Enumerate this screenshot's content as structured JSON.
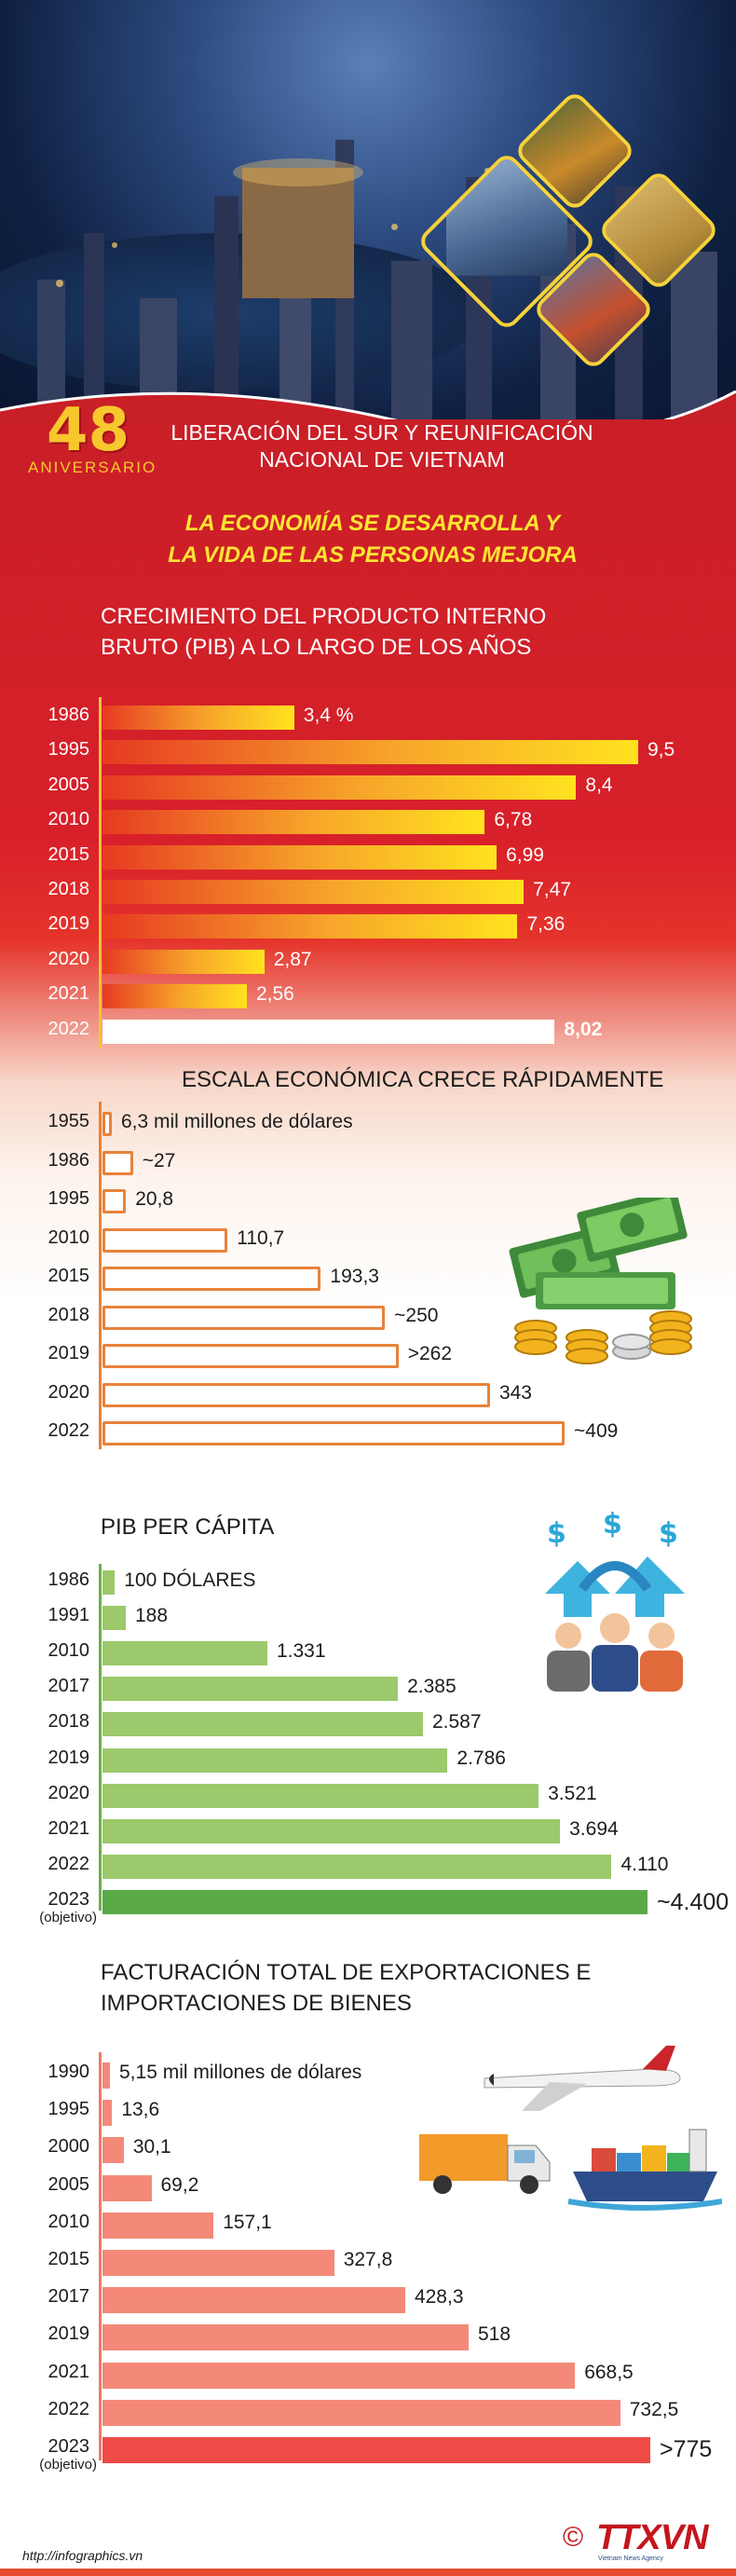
{
  "hero": {
    "anniversary_number": "48",
    "anniversary_label": "ANIVERSARIO",
    "headline_line1": "LIBERACIÓN DEL SUR Y REUNIFICACIÓN",
    "headline_line2": "NACIONAL DE VIETNAM",
    "subtitle_line1": "LA ECONOMÍA SE DESARROLLA Y",
    "subtitle_line2": "LA VIDA DE LAS PERSONAS  MEJORA"
  },
  "colors": {
    "red_background": "#d8202a",
    "gdp_growth_bar": "#ffd21f",
    "scale_bar_border": "#e8823a",
    "per_capita_bar": "#9cc96b",
    "per_capita_highlight": "#5aaa47",
    "trade_bar": "#f4897a",
    "trade_highlight": "#ee4b47",
    "accent_yellow": "#ffe533"
  },
  "chart_data": [
    {
      "type": "bar",
      "orientation": "horizontal",
      "title_line1": "CRECIMIENTO DEL PRODUCTO INTERNO",
      "title_line2": "BRUTO (PIB) A LO LARGO DE LOS AÑOS",
      "categories": [
        "1986",
        "1995",
        "2005",
        "2010",
        "2015",
        "2018",
        "2019",
        "2020",
        "2021",
        "2022"
      ],
      "values": [
        3.4,
        9.5,
        8.4,
        6.78,
        6.99,
        7.47,
        7.36,
        2.87,
        2.56,
        8.02
      ],
      "value_labels": [
        "3,4 %",
        "9,5",
        "8,4",
        "6,78",
        "6,99",
        "7,47",
        "7,36",
        "2,87",
        "2,56",
        "8,02"
      ],
      "highlight_index": 9
    },
    {
      "type": "bar",
      "orientation": "horizontal",
      "title": "ESCALA ECONÓMICA CRECE RÁPIDAMENTE",
      "categories": [
        "1955",
        "1986",
        "1995",
        "2010",
        "2015",
        "2018",
        "2019",
        "2020",
        "2022"
      ],
      "values": [
        6.3,
        27,
        20.8,
        110.7,
        193.3,
        250,
        262,
        343,
        409
      ],
      "value_labels": [
        "6,3 mil millones de dólares",
        "~27",
        "20,8",
        "110,7",
        "193,3",
        "~250",
        ">262",
        "343",
        "~409"
      ],
      "icon": "money-stack-icon"
    },
    {
      "type": "bar",
      "orientation": "horizontal",
      "title": "PIB PER CÁPITA",
      "categories": [
        "1986",
        "1991",
        "2010",
        "2017",
        "2018",
        "2019",
        "2020",
        "2021",
        "2022",
        "2023"
      ],
      "category_notes": [
        "",
        "",
        "",
        "",
        "",
        "",
        "",
        "",
        "",
        "(objetivo)"
      ],
      "values": [
        100,
        188,
        1331,
        2385,
        2587,
        2786,
        3521,
        3694,
        4110,
        4400
      ],
      "value_labels": [
        "100 DÓLARES",
        "188",
        "1.331",
        "2.385",
        "2.587",
        "2.786",
        "3.521",
        "3.694",
        "4.110",
        "~4.400"
      ],
      "highlight_index": 9,
      "icon": "people-income-icon"
    },
    {
      "type": "bar",
      "orientation": "horizontal",
      "title_line1": "FACTURACIÓN TOTAL DE EXPORTACIONES E",
      "title_line2": "IMPORTACIONES DE BIENES",
      "categories": [
        "1990",
        "1995",
        "2000",
        "2005",
        "2010",
        "2015",
        "2017",
        "2019",
        "2021",
        "2022",
        "2023"
      ],
      "category_notes": [
        "",
        "",
        "",
        "",
        "",
        "",
        "",
        "",
        "",
        "",
        "(objetivo)"
      ],
      "values": [
        5.15,
        13.6,
        30.1,
        69.2,
        157.1,
        327.8,
        428.3,
        518,
        668.5,
        732.5,
        775
      ],
      "value_labels": [
        "5,15 mil millones de dólares",
        "13,6",
        "30,1",
        "69,2",
        "157,1",
        "327,8",
        "428,3",
        "518",
        "668,5",
        "732,5",
        ">775"
      ],
      "highlight_index": 10,
      "icon": "transport-trade-icon"
    }
  ],
  "footer": {
    "url": "http://infographics.vn",
    "copyright_symbol": "©",
    "agency": "TTXVN",
    "agency_tagline": "Vietnam News Agency"
  }
}
